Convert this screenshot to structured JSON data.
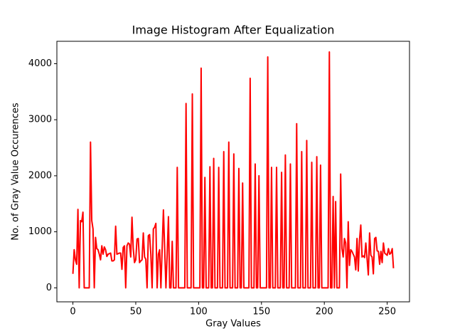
{
  "chart_data": {
    "type": "line",
    "title": "Image Histogram After Equalization",
    "x_label": "Gray Values",
    "y_label": "No. of Gray Value Occurences",
    "x": [
      0,
      1,
      2,
      3,
      4,
      5,
      6,
      7,
      8,
      9,
      10,
      11,
      12,
      13,
      14,
      15,
      16,
      17,
      18,
      19,
      20,
      21,
      22,
      23,
      24,
      25,
      26,
      27,
      28,
      29,
      30,
      31,
      32,
      33,
      34,
      35,
      36,
      37,
      38,
      39,
      40,
      41,
      42,
      43,
      44,
      45,
      46,
      47,
      48,
      49,
      50,
      51,
      52,
      53,
      54,
      55,
      56,
      57,
      58,
      59,
      60,
      61,
      62,
      63,
      64,
      65,
      66,
      67,
      68,
      69,
      70,
      71,
      72,
      73,
      74,
      75,
      76,
      77,
      78,
      79,
      80,
      81,
      82,
      83,
      84,
      85,
      86,
      87,
      88,
      89,
      90,
      91,
      92,
      93,
      94,
      95,
      96,
      97,
      98,
      99,
      100,
      101,
      102,
      103,
      104,
      105,
      106,
      107,
      108,
      109,
      110,
      111,
      112,
      113,
      114,
      115,
      116,
      117,
      118,
      119,
      120,
      121,
      122,
      123,
      124,
      125,
      126,
      127,
      128,
      129,
      130,
      131,
      132,
      133,
      134,
      135,
      136,
      137,
      138,
      139,
      140,
      141,
      142,
      143,
      144,
      145,
      146,
      147,
      148,
      149,
      150,
      151,
      152,
      153,
      154,
      155,
      156,
      157,
      158,
      159,
      160,
      161,
      162,
      163,
      164,
      165,
      166,
      167,
      168,
      169,
      170,
      171,
      172,
      173,
      174,
      175,
      176,
      177,
      178,
      179,
      180,
      181,
      182,
      183,
      184,
      185,
      186,
      187,
      188,
      189,
      190,
      191,
      192,
      193,
      194,
      195,
      196,
      197,
      198,
      199,
      200,
      201,
      202,
      203,
      204,
      205,
      206,
      207,
      208,
      209,
      210,
      211,
      212,
      213,
      214,
      215,
      216,
      217,
      218,
      219,
      220,
      221,
      222,
      223,
      224,
      225,
      226,
      227,
      228,
      229,
      230,
      231,
      232,
      233,
      234,
      235,
      236,
      237,
      238,
      239,
      240,
      241,
      242,
      243,
      244,
      245,
      246,
      247,
      248,
      249,
      250,
      251,
      252,
      253,
      254,
      255
    ],
    "values": [
      250,
      680,
      500,
      420,
      1400,
      0,
      1200,
      1180,
      1350,
      0,
      0,
      0,
      0,
      0,
      2600,
      1200,
      1050,
      0,
      900,
      700,
      680,
      600,
      500,
      750,
      600,
      730,
      680,
      560,
      600,
      610,
      620,
      480,
      480,
      500,
      1100,
      600,
      610,
      620,
      620,
      330,
      720,
      750,
      0,
      750,
      800,
      780,
      550,
      1260,
      700,
      450,
      500,
      870,
      880,
      450,
      480,
      500,
      980,
      550,
      510,
      0,
      930,
      950,
      600,
      0,
      1050,
      1080,
      1150,
      0,
      600,
      680,
      0,
      700,
      1390,
      700,
      0,
      600,
      1270,
      0,
      0,
      830,
      0,
      0,
      0,
      2150,
      0,
      0,
      0,
      0,
      0,
      0,
      3290,
      0,
      0,
      0,
      0,
      3460,
      0,
      0,
      0,
      0,
      0,
      0,
      3920,
      0,
      0,
      1970,
      0,
      0,
      0,
      2160,
      0,
      0,
      2310,
      0,
      0,
      0,
      2150,
      0,
      0,
      0,
      2430,
      0,
      0,
      0,
      2600,
      0,
      0,
      0,
      2390,
      0,
      0,
      0,
      2130,
      0,
      0,
      1870,
      0,
      0,
      0,
      0,
      0,
      3740,
      0,
      0,
      0,
      2210,
      0,
      0,
      2000,
      0,
      0,
      0,
      0,
      0,
      0,
      4120,
      0,
      0,
      2150,
      0,
      0,
      0,
      2150,
      0,
      0,
      0,
      2060,
      0,
      0,
      2370,
      0,
      0,
      0,
      2210,
      0,
      0,
      0,
      0,
      2930,
      0,
      0,
      0,
      2430,
      0,
      0,
      0,
      2630,
      0,
      0,
      0,
      2240,
      0,
      0,
      0,
      2340,
      0,
      0,
      2190,
      0,
      0,
      0,
      0,
      0,
      0,
      4210,
      0,
      0,
      1630,
      0,
      1540,
      0,
      0,
      0,
      2030,
      700,
      550,
      880,
      800,
      0,
      1180,
      400,
      680,
      650,
      600,
      550,
      320,
      880,
      300,
      860,
      1120,
      550,
      570,
      540,
      800,
      520,
      230,
      980,
      580,
      550,
      250,
      880,
      900,
      660,
      650,
      420,
      650,
      450,
      800,
      620,
      600,
      580,
      700,
      600,
      620,
      700,
      350
    ],
    "color": "red",
    "xlim": [
      -12.75,
      267.75
    ],
    "xticks": [
      0,
      50,
      100,
      150,
      200,
      250
    ],
    "ylim": [
      -250,
      4400
    ],
    "yticks": [
      0,
      1000,
      2000,
      3000,
      4000
    ]
  }
}
